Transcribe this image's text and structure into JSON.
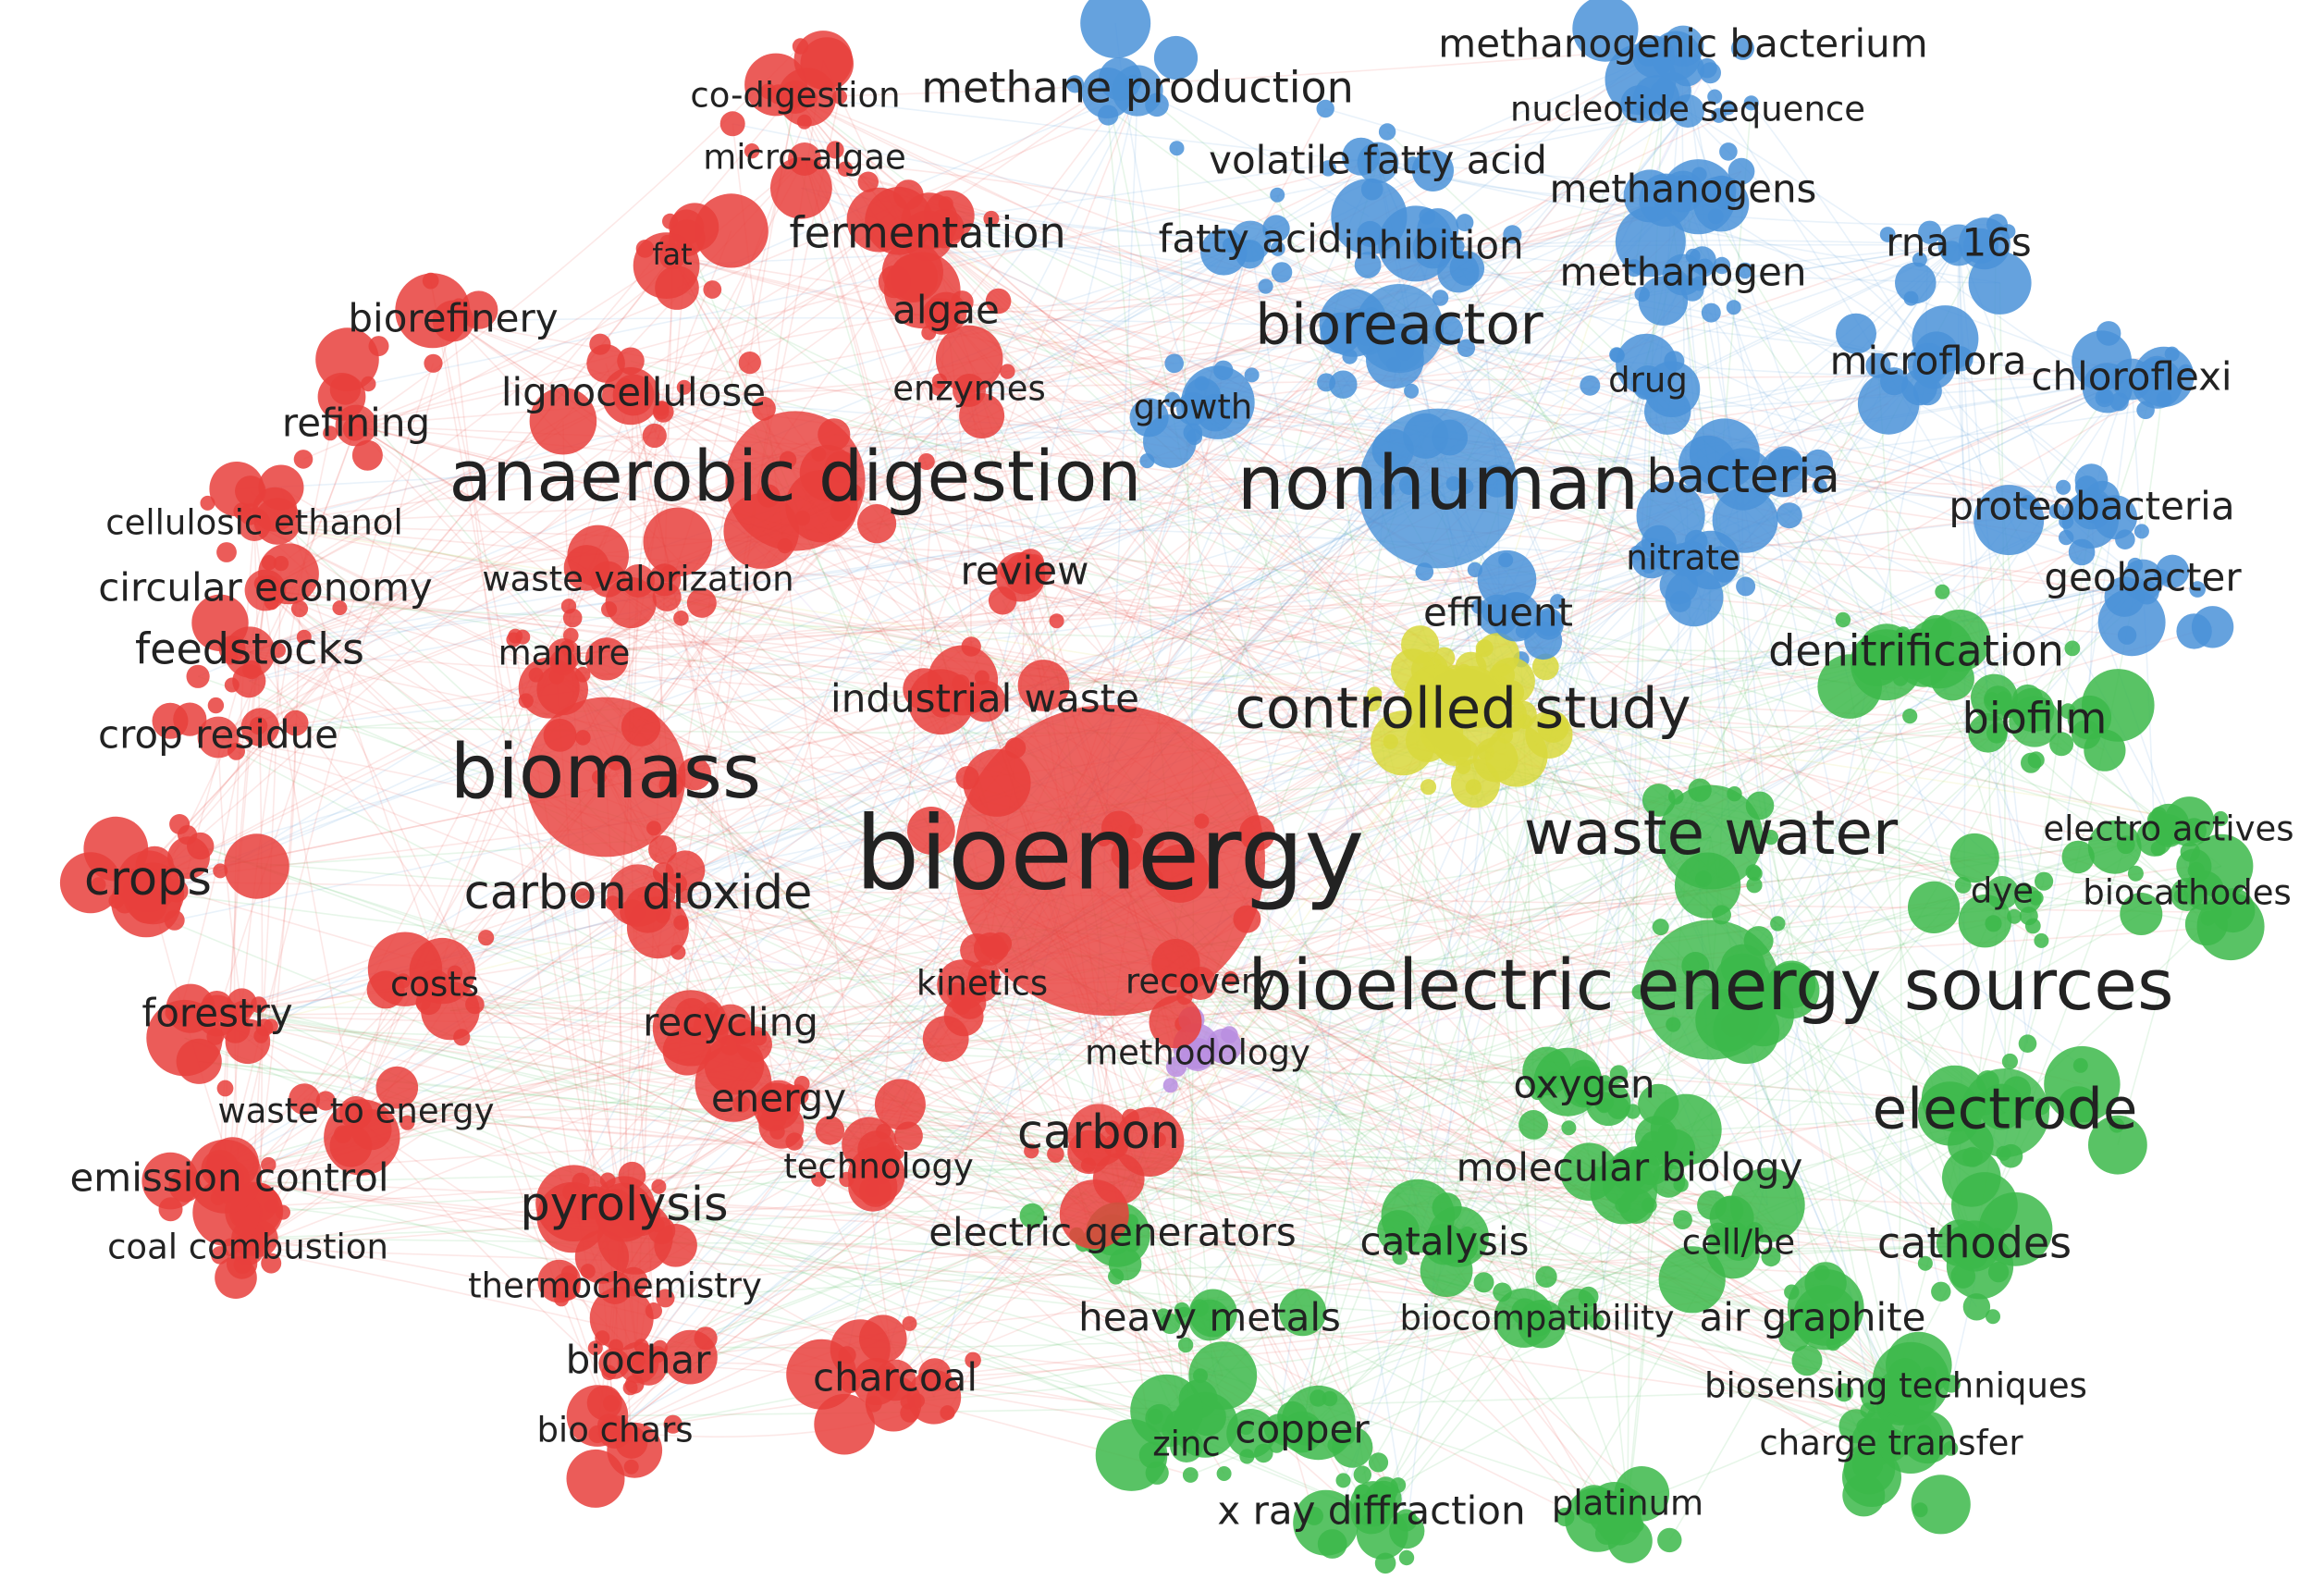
{
  "clusters": [
    {
      "id": "red",
      "color": "#e8403c"
    },
    {
      "id": "green",
      "color": "#3cb84a"
    },
    {
      "id": "blue",
      "color": "#4a92d8"
    },
    {
      "id": "yellow",
      "color": "#d8d83c"
    },
    {
      "id": "purple",
      "color": "#b98de0"
    }
  ],
  "terms": [
    {
      "label": "bioenergy",
      "cluster": "red",
      "weight": 10
    },
    {
      "label": "biomass",
      "cluster": "red",
      "weight": 7
    },
    {
      "label": "anaerobic digestion",
      "cluster": "red",
      "weight": 6.5
    },
    {
      "label": "carbon dioxide",
      "cluster": "red",
      "weight": 4
    },
    {
      "label": "crops",
      "cluster": "red",
      "weight": 4
    },
    {
      "label": "feedstocks",
      "cluster": "red",
      "weight": 3.5
    },
    {
      "label": "pyrolysis",
      "cluster": "red",
      "weight": 4
    },
    {
      "label": "carbon",
      "cluster": "red",
      "weight": 4
    },
    {
      "label": "fermentation",
      "cluster": "red",
      "weight": 3.5
    },
    {
      "label": "algae",
      "cluster": "red",
      "weight": 3
    },
    {
      "label": "review",
      "cluster": "red",
      "weight": 3
    },
    {
      "label": "forestry",
      "cluster": "red",
      "weight": 3
    },
    {
      "label": "recycling",
      "cluster": "red",
      "weight": 3
    },
    {
      "label": "energy",
      "cluster": "red",
      "weight": 3
    },
    {
      "label": "refining",
      "cluster": "red",
      "weight": 3
    },
    {
      "label": "biorefinery",
      "cluster": "red",
      "weight": 3
    },
    {
      "label": "lignocellulose",
      "cluster": "red",
      "weight": 3
    },
    {
      "label": "circular economy",
      "cluster": "red",
      "weight": 3
    },
    {
      "label": "crop residue",
      "cluster": "red",
      "weight": 3
    },
    {
      "label": "industrial waste",
      "cluster": "red",
      "weight": 3
    },
    {
      "label": "emission control",
      "cluster": "red",
      "weight": 3
    },
    {
      "label": "biochar",
      "cluster": "red",
      "weight": 3
    },
    {
      "label": "charcoal",
      "cluster": "red",
      "weight": 3
    },
    {
      "label": "kinetics",
      "cluster": "red",
      "weight": 2.5
    },
    {
      "label": "recovery",
      "cluster": "red",
      "weight": 2.5
    },
    {
      "label": "technology",
      "cluster": "red",
      "weight": 2.5
    },
    {
      "label": "enzymes",
      "cluster": "red",
      "weight": 2.5
    },
    {
      "label": "manure",
      "cluster": "red",
      "weight": 2.5
    },
    {
      "label": "waste valorization",
      "cluster": "red",
      "weight": 2.5
    },
    {
      "label": "micro-algae",
      "cluster": "red",
      "weight": 2.5
    },
    {
      "label": "co-digestion",
      "cluster": "red",
      "weight": 2.5
    },
    {
      "label": "cellulosic ethanol",
      "cluster": "red",
      "weight": 2.5
    },
    {
      "label": "costs",
      "cluster": "red",
      "weight": 2.5
    },
    {
      "label": "waste to energy",
      "cluster": "red",
      "weight": 2.5
    },
    {
      "label": "coal combustion",
      "cluster": "red",
      "weight": 2.5
    },
    {
      "label": "thermochemistry",
      "cluster": "red",
      "weight": 2.5
    },
    {
      "label": "bio chars",
      "cluster": "red",
      "weight": 2.5
    },
    {
      "label": "fat",
      "cluster": "red",
      "weight": 2
    },
    {
      "label": "nonhuman",
      "cluster": "blue",
      "weight": 7
    },
    {
      "label": "bioreactor",
      "cluster": "blue",
      "weight": 5
    },
    {
      "label": "bacteria",
      "cluster": "blue",
      "weight": 4
    },
    {
      "label": "methane production",
      "cluster": "blue",
      "weight": 3.5
    },
    {
      "label": "volatile fatty acid",
      "cluster": "blue",
      "weight": 3
    },
    {
      "label": "fatty acid",
      "cluster": "blue",
      "weight": 3
    },
    {
      "label": "inhibition",
      "cluster": "blue",
      "weight": 3
    },
    {
      "label": "methanogens",
      "cluster": "blue",
      "weight": 3
    },
    {
      "label": "methanogen",
      "cluster": "blue",
      "weight": 3
    },
    {
      "label": "methanogenic bacterium",
      "cluster": "blue",
      "weight": 3
    },
    {
      "label": "nucleotide sequence",
      "cluster": "blue",
      "weight": 2.5
    },
    {
      "label": "rna 16s",
      "cluster": "blue",
      "weight": 3
    },
    {
      "label": "microflora",
      "cluster": "blue",
      "weight": 3
    },
    {
      "label": "chloroflexi",
      "cluster": "blue",
      "weight": 3
    },
    {
      "label": "proteobacteria",
      "cluster": "blue",
      "weight": 3
    },
    {
      "label": "geobacter",
      "cluster": "blue",
      "weight": 3
    },
    {
      "label": "nitrate",
      "cluster": "blue",
      "weight": 2.5
    },
    {
      "label": "effluent",
      "cluster": "blue",
      "weight": 3
    },
    {
      "label": "growth",
      "cluster": "blue",
      "weight": 2.5
    },
    {
      "label": "drug",
      "cluster": "blue",
      "weight": 2.5
    },
    {
      "label": "controlled study",
      "cluster": "yellow",
      "weight": 5
    },
    {
      "label": "bioelectric energy sources",
      "cluster": "green",
      "weight": 6.5
    },
    {
      "label": "waste water",
      "cluster": "green",
      "weight": 5.5
    },
    {
      "label": "electrode",
      "cluster": "green",
      "weight": 5
    },
    {
      "label": "biofilm",
      "cluster": "green",
      "weight": 3.5
    },
    {
      "label": "denitrification",
      "cluster": "green",
      "weight": 3.5
    },
    {
      "label": "electro actives",
      "cluster": "green",
      "weight": 2.5
    },
    {
      "label": "dye",
      "cluster": "green",
      "weight": 2.5
    },
    {
      "label": "biocathodes",
      "cluster": "green",
      "weight": 2.5
    },
    {
      "label": "oxygen",
      "cluster": "green",
      "weight": 3
    },
    {
      "label": "molecular biology",
      "cluster": "green",
      "weight": 3
    },
    {
      "label": "catalysis",
      "cluster": "green",
      "weight": 3
    },
    {
      "label": "cathodes",
      "cluster": "green",
      "weight": 3.5
    },
    {
      "label": "cell/be",
      "cluster": "green",
      "weight": 2.5
    },
    {
      "label": "air graphite",
      "cluster": "green",
      "weight": 3
    },
    {
      "label": "biocompatibility",
      "cluster": "green",
      "weight": 2.5
    },
    {
      "label": "heavy metals",
      "cluster": "green",
      "weight": 3
    },
    {
      "label": "electric generators",
      "cluster": "green",
      "weight": 3
    },
    {
      "label": "biosensing techniques",
      "cluster": "green",
      "weight": 2.5
    },
    {
      "label": "charge transfer",
      "cluster": "green",
      "weight": 2.5
    },
    {
      "label": "copper",
      "cluster": "green",
      "weight": 3
    },
    {
      "label": "zinc",
      "cluster": "green",
      "weight": 2.5
    },
    {
      "label": "platinum",
      "cluster": "green",
      "weight": 2.5
    },
    {
      "label": "x ray diffraction",
      "cluster": "green",
      "weight": 3
    },
    {
      "label": "methodology",
      "cluster": "purple",
      "weight": 2.5
    }
  ]
}
